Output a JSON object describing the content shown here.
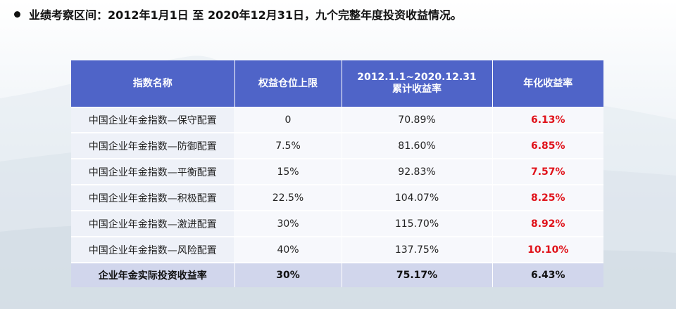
{
  "headline": {
    "text": "业绩考察区间：2012年1月1日 至 2020年12月31日，九个完整年度投资收益情况。"
  },
  "table": {
    "headers": {
      "index_name": "指数名称",
      "equity_cap": "权益仓位上限",
      "cumulative_line1": "2012.1.1~2020.12.31",
      "cumulative_line2": "累计收益率",
      "annualized": "年化收益率"
    },
    "rows": [
      {
        "name": "中国企业年金指数—保守配置",
        "equity_cap": "0",
        "cumulative": "70.89%",
        "annualized": "6.13%"
      },
      {
        "name": "中国企业年金指数—防御配置",
        "equity_cap": "7.5%",
        "cumulative": "81.60%",
        "annualized": "6.85%"
      },
      {
        "name": "中国企业年金指数—平衡配置",
        "equity_cap": "15%",
        "cumulative": "92.83%",
        "annualized": "7.57%"
      },
      {
        "name": "中国企业年金指数—积极配置",
        "equity_cap": "22.5%",
        "cumulative": "104.07%",
        "annualized": "8.25%"
      },
      {
        "name": "中国企业年金指数—激进配置",
        "equity_cap": "30%",
        "cumulative": "115.70%",
        "annualized": "8.92%"
      },
      {
        "name": "中国企业年金指数—风险配置",
        "equity_cap": "40%",
        "cumulative": "137.75%",
        "annualized": "10.10%"
      }
    ],
    "total": {
      "name": "企业年金实际投资收益率",
      "equity_cap": "30%",
      "cumulative": "75.17%",
      "annualized": "6.43%"
    }
  },
  "colors": {
    "header_bg": "#4f64c8",
    "highlight_red": "#e0121a",
    "total_row_bg": "#d1d6ec"
  }
}
